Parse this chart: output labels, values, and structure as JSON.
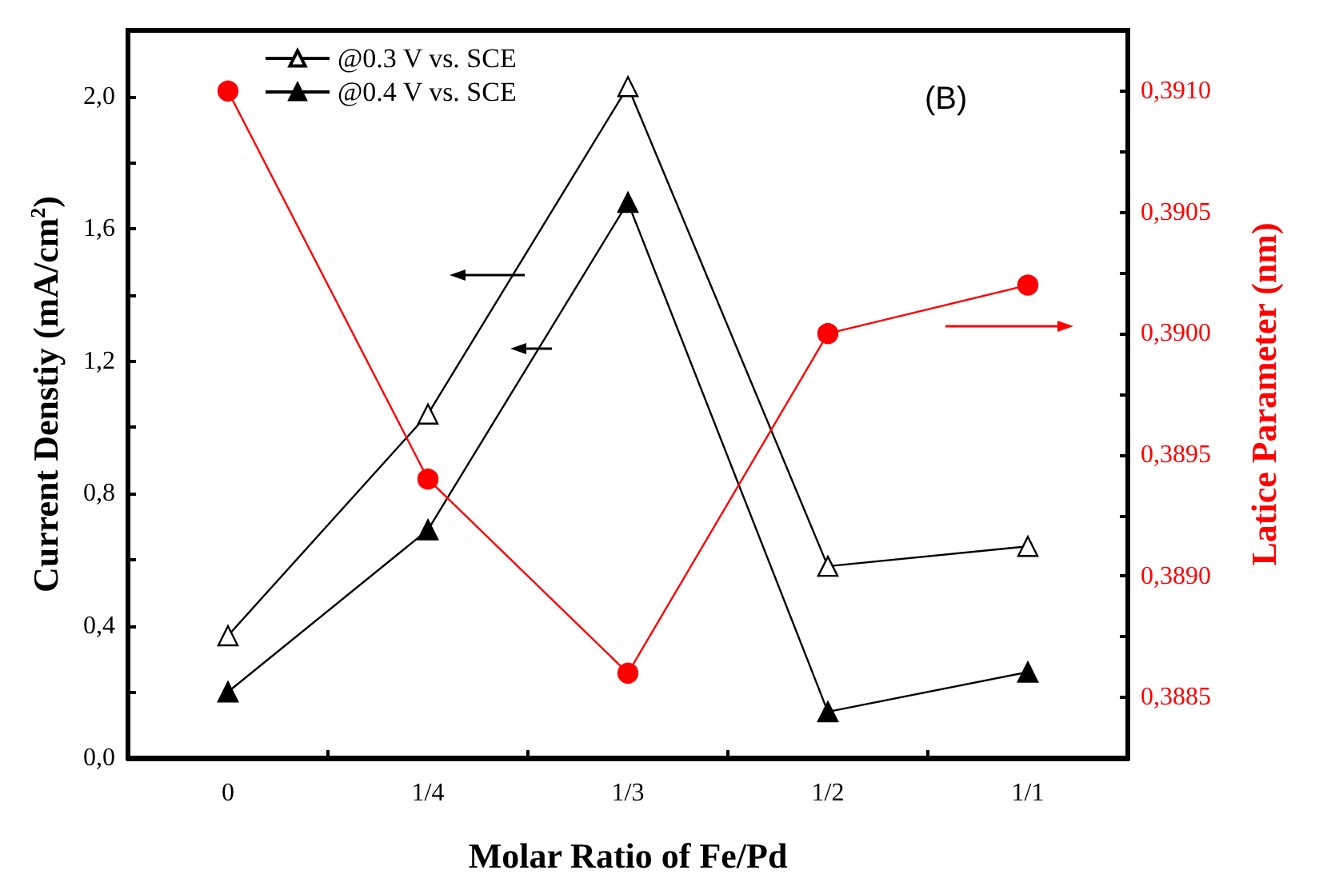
{
  "chart_data": {
    "type": "line",
    "categories": [
      "0",
      "1/4",
      "1/3",
      "1/2",
      "1/1"
    ],
    "xlabel": "Molar Ratio of Fe/Pd",
    "ylabel": "Current Denstiy (mA/cm$^{2}$)",
    "y2label": "Latice Parameter (nm)",
    "series": [
      {
        "name": "@0.3 V vs. SCE",
        "color": "#000000",
        "marker": "triangle",
        "values": [
          0.37,
          1.04,
          2.03,
          0.58,
          0.64
        ]
      },
      {
        "name": "@0.4 V vs. SCE",
        "color": "#000000",
        "marker": "triangle",
        "values": [
          0.2,
          0.69,
          1.68,
          0.14,
          0.26
        ]
      },
      {
        "color": "#ff0000",
        "marker": "circle",
        "axis": "y2",
        "values": [
          0.391,
          0.3894,
          0.3886,
          0.39,
          0.3902
        ]
      }
    ],
    "ylim": [
      0,
      2.2
    ],
    "yticks": [
      {
        "value": 0,
        "label": "0,0"
      },
      {
        "value": 0.2,
        "label": null
      },
      {
        "value": 0.4,
        "label": "0,4"
      },
      {
        "value": 0.6,
        "label": null
      },
      {
        "value": 0.8,
        "label": "0,8"
      },
      {
        "value": 1.0,
        "label": null
      },
      {
        "value": 1.2,
        "label": "1,2"
      },
      {
        "value": 1.4,
        "label": null
      },
      {
        "value": 1.6,
        "label": "1,6"
      },
      {
        "value": 1.8,
        "label": null
      },
      {
        "value": 2.0,
        "label": "2,0"
      }
    ],
    "y2lim": [
      0.38825,
      0.39125
    ],
    "y2ticks": [
      {
        "value": 0.3885,
        "label": "0,3885"
      },
      {
        "value": 0.38875,
        "label": null
      },
      {
        "value": 0.389,
        "label": "0,3890"
      },
      {
        "value": 0.38925,
        "label": null
      },
      {
        "value": 0.3895,
        "label": "0,3895"
      },
      {
        "value": 0.38975,
        "label": null
      },
      {
        "value": 0.39,
        "label": "0,3900"
      },
      {
        "value": 0.39025,
        "label": null
      },
      {
        "value": 0.3905,
        "label": "0,3905"
      },
      {
        "value": 0.39075,
        "label": null
      },
      {
        "value": 0.391,
        "label": "0,3910"
      }
    ],
    "annotations": [
      "(B)"
    ],
    "legend": "top left",
    "grid": false
  }
}
